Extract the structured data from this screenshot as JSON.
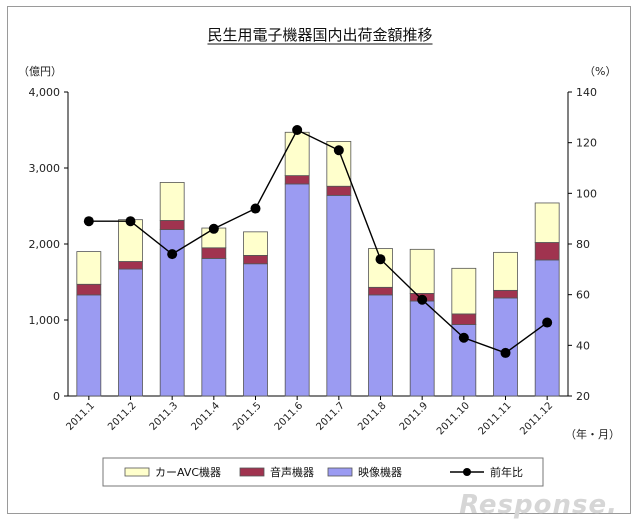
{
  "chart_data": {
    "type": "bar",
    "title": "民生用電子機器国内出荷金額推移",
    "ylabel_left": "（億円）",
    "ylabel_right": "（%）",
    "xlabel": "（年・月）",
    "categories": [
      "2011.1",
      "2011.2",
      "2011.3",
      "2011.4",
      "2011.5",
      "2011.6",
      "2011.7",
      "2011.8",
      "2011.9",
      "2011.10",
      "2011.11",
      "2011.12"
    ],
    "ylim_left": [
      0,
      4000
    ],
    "yticks_left": [
      "0",
      "1,000",
      "2,000",
      "3,000",
      "4,000"
    ],
    "ylim_right": [
      20,
      140
    ],
    "yticks_right": [
      "20",
      "40",
      "60",
      "80",
      "100",
      "120",
      "140"
    ],
    "stacked": true,
    "series": [
      {
        "name": "映像機器",
        "color": "#9b9bf2",
        "axis": "left",
        "values": [
          1330,
          1670,
          2190,
          1810,
          1740,
          2790,
          2640,
          1330,
          1250,
          940,
          1290,
          1790
        ]
      },
      {
        "name": "音声機器",
        "color": "#a0334f",
        "axis": "left",
        "values": [
          140,
          100,
          120,
          140,
          110,
          110,
          120,
          100,
          100,
          140,
          100,
          230
        ]
      },
      {
        "name": "カーAVC機器",
        "color": "#ffffcc",
        "axis": "left",
        "values": [
          430,
          550,
          500,
          260,
          310,
          570,
          590,
          510,
          580,
          600,
          500,
          520
        ]
      },
      {
        "name": "前年比",
        "color": "#000000",
        "axis": "right",
        "type": "line",
        "values": [
          89,
          89,
          76,
          86,
          94,
          125,
          117,
          74,
          58,
          43,
          37,
          49
        ]
      }
    ],
    "legend_order": [
      "カーAVC機器",
      "音声機器",
      "映像機器",
      "前年比"
    ],
    "legend_position": "bottom",
    "grid": false
  },
  "watermark": "Response."
}
